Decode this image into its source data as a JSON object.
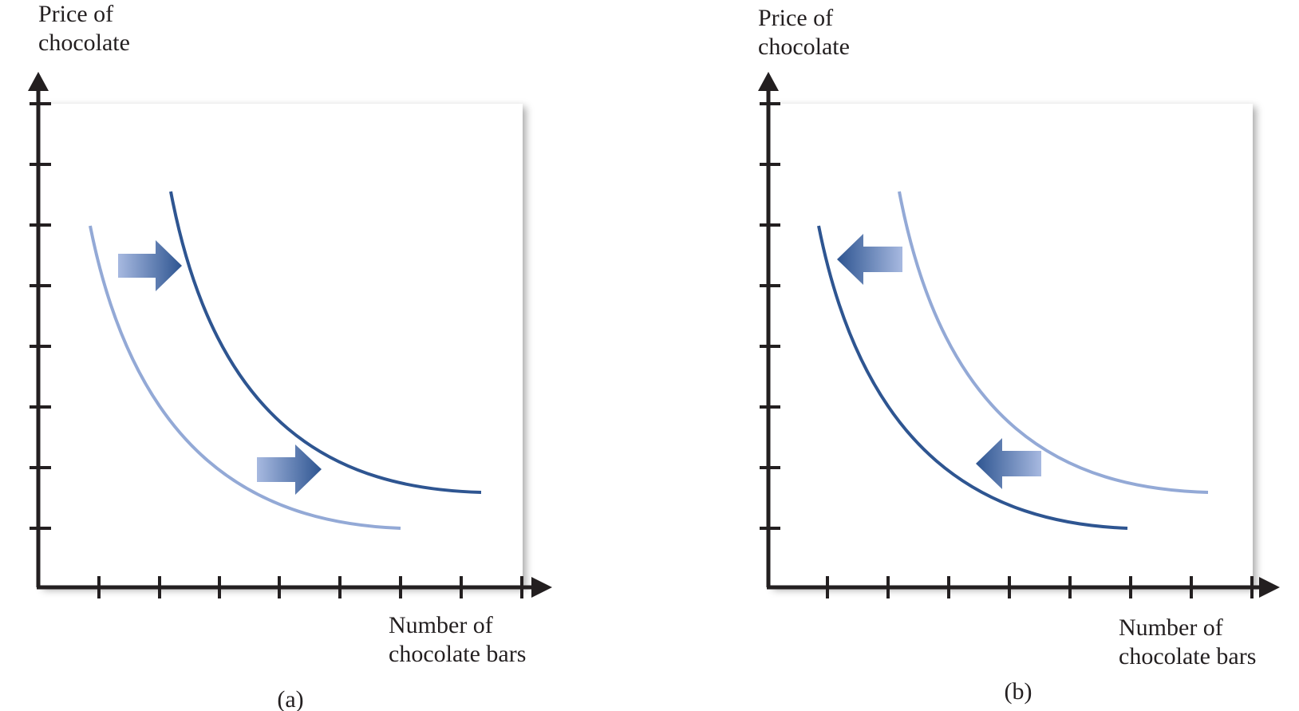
{
  "panels": [
    {
      "id": "a",
      "caption": "(a)",
      "ylabel": [
        "Price of",
        "chocolate"
      ],
      "xlabel": [
        "Number of",
        "chocolate bars"
      ],
      "shift": "right"
    },
    {
      "id": "b",
      "caption": "(b)",
      "ylabel": [
        "Price of",
        "chocolate"
      ],
      "xlabel": [
        "Number of",
        "chocolate bars"
      ],
      "shift": "left"
    }
  ],
  "colors": {
    "axis": "#231f20",
    "curve_dark": "#2e5591",
    "curve_light": "#93a9d6",
    "arrow_dark": "#2e5591",
    "arrow_light": "#a7b9e0"
  }
}
